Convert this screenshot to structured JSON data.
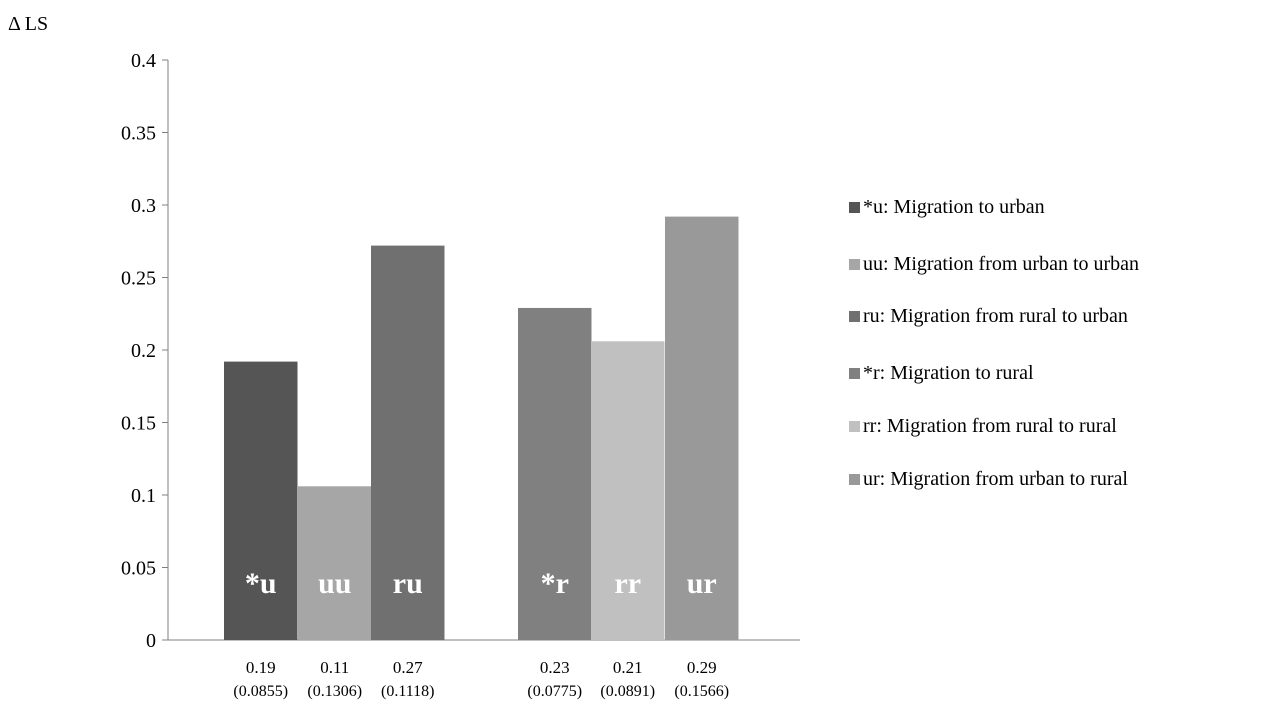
{
  "chart_data": {
    "type": "bar",
    "ylabel": "Δ LS",
    "ylim": [
      0,
      0.4
    ],
    "yticks": [
      "0",
      "0.05",
      "0.1",
      "0.15",
      "0.2",
      "0.25",
      "0.3",
      "0.35",
      "0.4"
    ],
    "grid": false,
    "legend_position": "right",
    "bars": [
      {
        "group": 1,
        "label": "*u",
        "value": 0.192,
        "value_label": "0.19",
        "se_label": "(0.0855)",
        "color": "#555555"
      },
      {
        "group": 1,
        "label": "uu",
        "value": 0.106,
        "value_label": "0.11",
        "se_label": "(0.1306)",
        "color": "#a6a6a6"
      },
      {
        "group": 1,
        "label": "ru",
        "value": 0.272,
        "value_label": "0.27",
        "se_label": "(0.1118)",
        "color": "#707070"
      },
      {
        "group": 2,
        "label": "*r",
        "value": 0.229,
        "value_label": "0.23",
        "se_label": "(0.0775)",
        "color": "#808080"
      },
      {
        "group": 2,
        "label": "rr",
        "value": 0.206,
        "value_label": "0.21",
        "se_label": "(0.0891)",
        "color": "#c0c0c0"
      },
      {
        "group": 2,
        "label": "ur",
        "value": 0.292,
        "value_label": "0.29",
        "se_label": "(0.1566)",
        "color": "#999999"
      }
    ],
    "legend": [
      {
        "text": "*u: Migration to urban",
        "color": "#555555"
      },
      {
        "text": "uu: Migration from urban to urban",
        "color": "#a6a6a6"
      },
      {
        "text": "ru: Migration from rural to urban",
        "color": "#707070"
      },
      {
        "text": "*r: Migration to rural",
        "color": "#808080"
      },
      {
        "text": "rr: Migration from rural to rural",
        "color": "#c0c0c0"
      },
      {
        "text": "ur: Migration from urban to rural",
        "color": "#999999"
      }
    ]
  }
}
